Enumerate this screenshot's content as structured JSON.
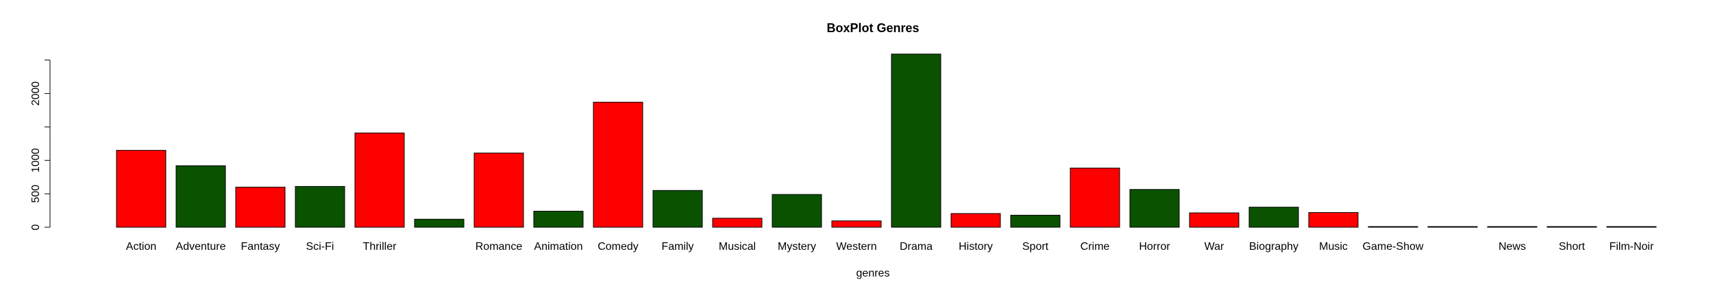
{
  "chart_data": {
    "type": "bar",
    "title": "BoxPlot Genres",
    "xlabel": "genres",
    "ylabel": "",
    "ylim": [
      0,
      2500
    ],
    "yticks": [
      0,
      500,
      1000,
      2000
    ],
    "grid": false,
    "legend": "none",
    "categories": [
      "Action",
      "Adventure",
      "Fantasy",
      "Sci-Fi",
      "Thriller",
      "",
      "Romance",
      "Animation",
      "Comedy",
      "Family",
      "Musical",
      "Mystery",
      "Western",
      "Drama",
      "History",
      "Sport",
      "Crime",
      "Horror",
      "War",
      "Biography",
      "Music",
      "Game-Show",
      "",
      "News",
      "Short",
      "Film-Noir"
    ],
    "values": [
      1150,
      920,
      600,
      610,
      1410,
      120,
      1110,
      240,
      1870,
      550,
      135,
      490,
      95,
      2590,
      205,
      180,
      885,
      565,
      215,
      300,
      220,
      1,
      1,
      1,
      3,
      6
    ],
    "colors": [
      "#ff0000",
      "#0a5200",
      "#ff0000",
      "#0a5200",
      "#ff0000",
      "#0a5200",
      "#ff0000",
      "#0a5200",
      "#ff0000",
      "#0a5200",
      "#ff0000",
      "#0a5200",
      "#ff0000",
      "#0a5200",
      "#ff0000",
      "#0a5200",
      "#ff0000",
      "#0a5200",
      "#ff0000",
      "#0a5200",
      "#ff0000",
      "#0a5200",
      "#ff0000",
      "#0a5200",
      "#ff0000",
      "#0a5200"
    ]
  }
}
